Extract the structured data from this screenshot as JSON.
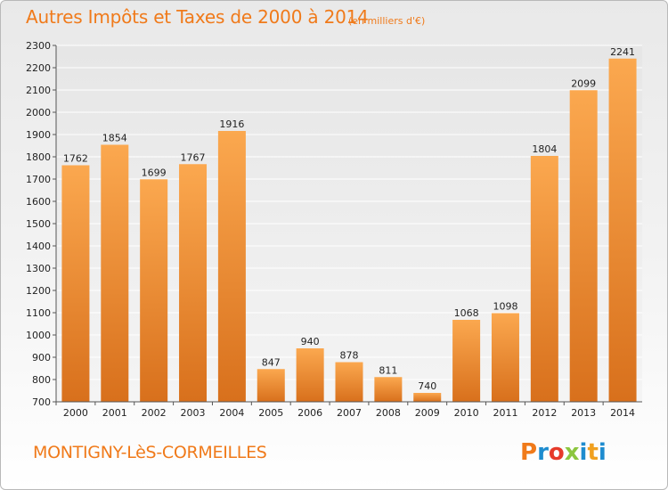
{
  "header": {
    "title": "Autres Impôts et Taxes de 2000 à 2014",
    "subtitle": "(en milliers d'€)"
  },
  "footer": {
    "commune": "MONTIGNY-LèS-CORMEILLES",
    "brand": "Proxiti"
  },
  "colors": {
    "bar_top": "#fba84f",
    "bar_bottom": "#d8701c",
    "accent_text": "#f07a1a",
    "brand_p": "#f07a1a",
    "brand_r": "#1e8ccf",
    "brand_o": "#e63a2a",
    "brand_x": "#8cc63f",
    "brand_i": "#1e8ccf",
    "brand_t": "#f0a020"
  },
  "chart_data": {
    "type": "bar",
    "title": "Autres Impôts et Taxes de 2000 à 2014",
    "subtitle": "(en milliers d'€)",
    "categories": [
      "2000",
      "2001",
      "2002",
      "2003",
      "2004",
      "2005",
      "2006",
      "2007",
      "2008",
      "2009",
      "2010",
      "2011",
      "2012",
      "2013",
      "2014"
    ],
    "values": [
      1762,
      1854,
      1699,
      1767,
      1916,
      847,
      940,
      878,
      811,
      740,
      1068,
      1098,
      1804,
      2099,
      2241
    ],
    "ylim": [
      700,
      2300
    ],
    "yticks": [
      700,
      800,
      900,
      1000,
      1100,
      1200,
      1300,
      1400,
      1500,
      1600,
      1700,
      1800,
      1900,
      2000,
      2100,
      2200,
      2300
    ],
    "grid": true,
    "xlabel": "",
    "ylabel": ""
  }
}
